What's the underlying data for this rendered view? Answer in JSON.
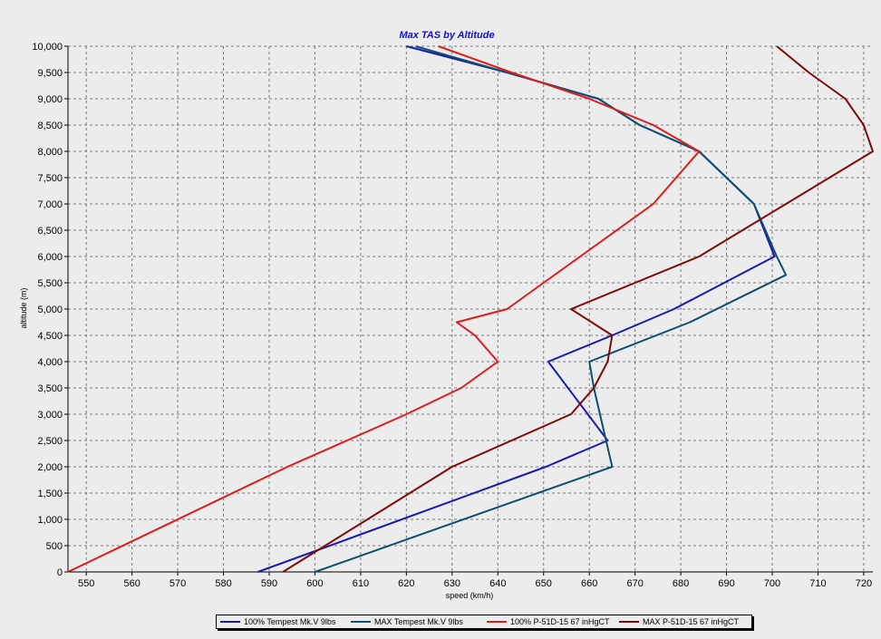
{
  "chart_data": {
    "type": "line",
    "title": "Max TAS by Altitude",
    "xlabel": "speed (km/h)",
    "ylabel": "altitude (m)",
    "xlim": [
      546,
      722
    ],
    "ylim": [
      0,
      10000
    ],
    "x_ticks": [
      "550",
      "560",
      "570",
      "580",
      "590",
      "600",
      "610",
      "620",
      "630",
      "640",
      "650",
      "660",
      "670",
      "680",
      "690",
      "700",
      "710",
      "720"
    ],
    "y_ticks": [
      "0",
      "500",
      "1,000",
      "1,500",
      "2,000",
      "2,500",
      "3,000",
      "3,500",
      "4,000",
      "4,500",
      "5,000",
      "5,500",
      "6,000",
      "6,500",
      "7,000",
      "7,500",
      "8,000",
      "8,500",
      "9,000",
      "9,500",
      "10,000"
    ],
    "grid": true,
    "legend_position": "bottom",
    "series": [
      {
        "name": "100% Tempest Mk.V  9lbs",
        "color": "#1a1ab0",
        "points": [
          [
            587.5,
            0
          ],
          [
            650.5,
            2000
          ],
          [
            664,
            2500
          ],
          [
            651,
            4000
          ],
          [
            665,
            4500
          ],
          [
            678.5,
            5000
          ],
          [
            700.5,
            6000
          ],
          [
            696,
            7000
          ],
          [
            684,
            8000
          ],
          [
            671,
            8500
          ],
          [
            662,
            9000
          ],
          [
            642,
            9500
          ],
          [
            620,
            10000
          ]
        ]
      },
      {
        "name": "MAX Tempest Mk.V  9lbs",
        "color": "#0e4f6e",
        "points": [
          [
            600,
            0
          ],
          [
            665,
            2000
          ],
          [
            661,
            3500
          ],
          [
            660,
            4000
          ],
          [
            682,
            4750
          ],
          [
            703,
            5650
          ],
          [
            701,
            6000
          ],
          [
            696,
            7000
          ],
          [
            684,
            8000
          ],
          [
            671,
            8500
          ],
          [
            662,
            9000
          ],
          [
            642,
            9500
          ],
          [
            622,
            10000
          ]
        ]
      },
      {
        "name": "100% P-51D-15 67 inHgCT",
        "color": "#dd1c1c",
        "points": [
          [
            546,
            0
          ],
          [
            594,
            2000
          ],
          [
            620,
            3000
          ],
          [
            632,
            3500
          ],
          [
            640,
            4000
          ],
          [
            635,
            4500
          ],
          [
            631,
            4750
          ],
          [
            642,
            5000
          ],
          [
            658,
            6000
          ],
          [
            674,
            7000
          ],
          [
            684,
            8000
          ],
          [
            674,
            8500
          ],
          [
            660,
            9000
          ],
          [
            643,
            9500
          ],
          [
            627,
            10000
          ]
        ]
      },
      {
        "name": "MAX P-51D-15 67 inHgCT",
        "color": "#7d0b0b",
        "points": [
          [
            593,
            0
          ],
          [
            630,
            2000
          ],
          [
            656,
            3000
          ],
          [
            661,
            3500
          ],
          [
            664,
            4000
          ],
          [
            665,
            4500
          ],
          [
            656,
            5000
          ],
          [
            684,
            6000
          ],
          [
            722,
            8000
          ],
          [
            720,
            8500
          ],
          [
            716,
            9000
          ],
          [
            708,
            9500
          ],
          [
            701,
            10000
          ]
        ]
      }
    ]
  }
}
